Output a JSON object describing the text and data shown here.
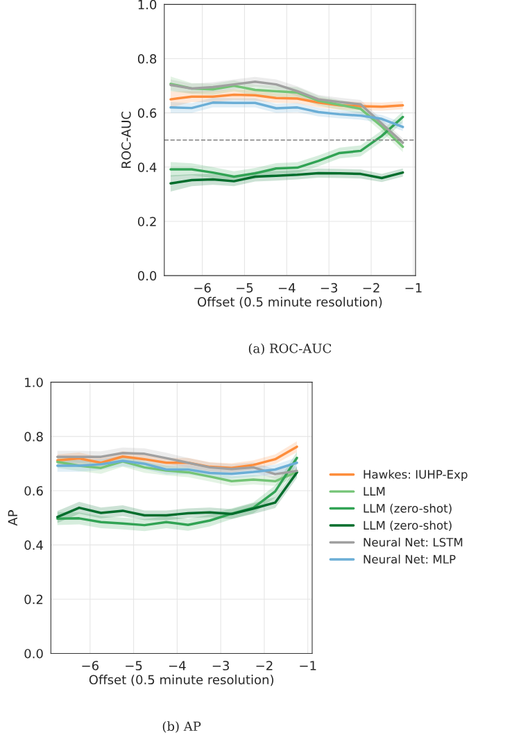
{
  "chart_data": [
    {
      "type": "line",
      "xlabel": "Offset (0.5 minute resolution)",
      "ylabel": "ROC-AUC",
      "annotations": [
        "(a) ROC-AUC"
      ],
      "x": [
        -6.75,
        -6.25,
        -5.75,
        -5.25,
        -4.75,
        -4.25,
        -3.75,
        -3.25,
        -2.75,
        -2.25,
        -1.75,
        -1.25
      ],
      "xlim": [
        -6.9,
        -0.95
      ],
      "xticks": [
        {
          "value": -6,
          "label": "−6"
        },
        {
          "value": -5,
          "label": "−5"
        },
        {
          "value": -4,
          "label": "−4"
        },
        {
          "value": -3,
          "label": "−3"
        },
        {
          "value": -2,
          "label": "−2"
        },
        {
          "value": -1,
          "label": "−1"
        }
      ],
      "ylim": [
        0,
        1
      ],
      "yticks": [
        {
          "value": 0,
          "label": "0.0"
        },
        {
          "value": 0.2,
          "label": "0.2"
        },
        {
          "value": 0.4,
          "label": "0.4"
        },
        {
          "value": 0.6,
          "label": "0.6"
        },
        {
          "value": 0.8,
          "label": "0.8"
        },
        {
          "value": 1,
          "label": "1.0"
        }
      ],
      "grid": true,
      "legend": false,
      "line_style": "solid",
      "ref_lines": [
        {
          "axis": "y",
          "value": 0.5,
          "color": "#808080",
          "line_style": "dashed"
        }
      ],
      "series": [
        {
          "color": "#fd8d3c",
          "values": [
            0.65,
            0.66,
            0.66,
            0.667,
            0.665,
            0.655,
            0.653,
            0.638,
            0.628,
            0.625,
            0.623,
            0.628
          ],
          "lower": [
            0.62,
            0.64,
            0.64,
            0.647,
            0.645,
            0.637,
            0.635,
            0.62,
            0.612,
            0.61,
            0.608,
            0.613
          ],
          "upper": [
            0.68,
            0.68,
            0.68,
            0.687,
            0.685,
            0.673,
            0.671,
            0.656,
            0.644,
            0.64,
            0.638,
            0.643
          ]
        },
        {
          "color": "#74c476",
          "values": [
            0.707,
            0.69,
            0.687,
            0.7,
            0.685,
            0.68,
            0.675,
            0.645,
            0.63,
            0.615,
            0.55,
            0.475
          ],
          "lower": [
            0.68,
            0.67,
            0.667,
            0.68,
            0.665,
            0.66,
            0.655,
            0.627,
            0.612,
            0.597,
            0.53,
            0.455
          ],
          "upper": [
            0.734,
            0.71,
            0.707,
            0.72,
            0.705,
            0.7,
            0.695,
            0.663,
            0.648,
            0.633,
            0.57,
            0.495
          ]
        },
        {
          "color": "#31a354",
          "values": [
            0.392,
            0.392,
            0.38,
            0.365,
            0.377,
            0.395,
            0.398,
            0.423,
            0.452,
            0.46,
            0.515,
            0.585
          ],
          "lower": [
            0.365,
            0.37,
            0.36,
            0.345,
            0.357,
            0.375,
            0.378,
            0.403,
            0.432,
            0.44,
            0.495,
            0.565
          ],
          "upper": [
            0.419,
            0.414,
            0.4,
            0.385,
            0.397,
            0.415,
            0.418,
            0.443,
            0.472,
            0.48,
            0.535,
            0.605
          ]
        },
        {
          "color": "#006d2c",
          "values": [
            0.34,
            0.352,
            0.355,
            0.348,
            0.365,
            0.368,
            0.372,
            0.378,
            0.377,
            0.375,
            0.36,
            0.38
          ],
          "lower": [
            0.31,
            0.33,
            0.335,
            0.33,
            0.347,
            0.35,
            0.355,
            0.361,
            0.36,
            0.358,
            0.345,
            0.365
          ],
          "upper": [
            0.37,
            0.374,
            0.375,
            0.366,
            0.383,
            0.386,
            0.389,
            0.395,
            0.394,
            0.392,
            0.375,
            0.395
          ]
        },
        {
          "color": "#a0a0a0",
          "values": [
            0.703,
            0.69,
            0.695,
            0.705,
            0.715,
            0.705,
            0.68,
            0.65,
            0.64,
            0.632,
            0.56,
            0.49
          ],
          "lower": [
            0.683,
            0.672,
            0.677,
            0.687,
            0.697,
            0.687,
            0.662,
            0.634,
            0.624,
            0.616,
            0.544,
            0.474
          ],
          "upper": [
            0.723,
            0.708,
            0.713,
            0.723,
            0.733,
            0.723,
            0.698,
            0.666,
            0.656,
            0.648,
            0.576,
            0.506
          ]
        },
        {
          "color": "#6baed6",
          "values": [
            0.62,
            0.618,
            0.638,
            0.637,
            0.637,
            0.617,
            0.62,
            0.603,
            0.595,
            0.59,
            0.578,
            0.548
          ],
          "lower": [
            0.6,
            0.6,
            0.62,
            0.62,
            0.62,
            0.6,
            0.603,
            0.587,
            0.58,
            0.575,
            0.563,
            0.533
          ],
          "upper": [
            0.64,
            0.636,
            0.656,
            0.654,
            0.654,
            0.634,
            0.637,
            0.619,
            0.61,
            0.605,
            0.593,
            0.563
          ]
        }
      ]
    },
    {
      "type": "line",
      "xlabel": "Offset (0.5 minute resolution)",
      "ylabel": "AP",
      "annotations": [
        "(b) AP"
      ],
      "x": [
        -6.75,
        -6.25,
        -5.75,
        -5.25,
        -4.75,
        -4.25,
        -3.75,
        -3.25,
        -2.75,
        -2.25,
        -1.75,
        -1.25
      ],
      "xlim": [
        -6.9,
        -0.9
      ],
      "xticks": [
        {
          "value": -6,
          "label": "−6"
        },
        {
          "value": -5,
          "label": "−5"
        },
        {
          "value": -4,
          "label": "−4"
        },
        {
          "value": -3,
          "label": "−3"
        },
        {
          "value": -2,
          "label": "−2"
        },
        {
          "value": -1,
          "label": "−1"
        }
      ],
      "ylim": [
        0,
        1
      ],
      "yticks": [
        {
          "value": 0,
          "label": "0.0"
        },
        {
          "value": 0.2,
          "label": "0.2"
        },
        {
          "value": 0.4,
          "label": "0.4"
        },
        {
          "value": 0.6,
          "label": "0.6"
        },
        {
          "value": 0.8,
          "label": "0.8"
        },
        {
          "value": 1,
          "label": "1.0"
        }
      ],
      "grid": true,
      "legend": "right",
      "line_style": "solid",
      "series": [
        {
          "name": "Hawkes: IUHP-Exp",
          "color": "#fd8d3c",
          "values": [
            0.712,
            0.719,
            0.703,
            0.726,
            0.716,
            0.703,
            0.703,
            0.688,
            0.684,
            0.695,
            0.716,
            0.762
          ],
          "lower": [
            0.69,
            0.697,
            0.683,
            0.706,
            0.696,
            0.685,
            0.685,
            0.671,
            0.667,
            0.678,
            0.698,
            0.742
          ],
          "upper": [
            0.734,
            0.741,
            0.723,
            0.746,
            0.736,
            0.721,
            0.721,
            0.705,
            0.701,
            0.712,
            0.734,
            0.782
          ]
        },
        {
          "name": "LLM",
          "color": "#74c476",
          "values": [
            0.706,
            0.692,
            0.684,
            0.708,
            0.686,
            0.674,
            0.668,
            0.652,
            0.635,
            0.641,
            0.635,
            0.669
          ],
          "lower": [
            0.684,
            0.672,
            0.662,
            0.688,
            0.666,
            0.656,
            0.65,
            0.634,
            0.617,
            0.623,
            0.617,
            0.651
          ],
          "upper": [
            0.728,
            0.712,
            0.706,
            0.728,
            0.706,
            0.692,
            0.686,
            0.67,
            0.653,
            0.659,
            0.653,
            0.687
          ]
        },
        {
          "name": "LLM (zero-shot)",
          "color": "#31a354",
          "values": [
            0.497,
            0.498,
            0.484,
            0.479,
            0.473,
            0.484,
            0.474,
            0.49,
            0.515,
            0.537,
            0.597,
            0.721
          ],
          "lower": [
            0.473,
            0.476,
            0.462,
            0.457,
            0.451,
            0.462,
            0.452,
            0.468,
            0.495,
            0.517,
            0.575,
            0.699
          ],
          "upper": [
            0.521,
            0.52,
            0.506,
            0.501,
            0.495,
            0.506,
            0.496,
            0.512,
            0.535,
            0.557,
            0.619,
            0.743
          ]
        },
        {
          "name": "LLM (zero-shot)",
          "color": "#006d2c",
          "values": [
            0.503,
            0.537,
            0.518,
            0.526,
            0.509,
            0.509,
            0.517,
            0.52,
            0.514,
            0.534,
            0.556,
            0.667
          ],
          "lower": [
            0.481,
            0.515,
            0.498,
            0.506,
            0.491,
            0.491,
            0.499,
            0.502,
            0.496,
            0.514,
            0.536,
            0.647
          ],
          "upper": [
            0.525,
            0.559,
            0.538,
            0.546,
            0.527,
            0.527,
            0.535,
            0.538,
            0.532,
            0.554,
            0.576,
            0.687
          ]
        },
        {
          "name": "Neural Net: LSTM",
          "color": "#a0a0a0",
          "values": [
            0.725,
            0.725,
            0.725,
            0.739,
            0.736,
            0.72,
            0.703,
            0.686,
            0.68,
            0.686,
            0.661,
            0.673
          ],
          "lower": [
            0.703,
            0.703,
            0.705,
            0.719,
            0.716,
            0.7,
            0.685,
            0.668,
            0.662,
            0.668,
            0.643,
            0.655
          ],
          "upper": [
            0.747,
            0.747,
            0.745,
            0.759,
            0.756,
            0.74,
            0.721,
            0.704,
            0.698,
            0.704,
            0.679,
            0.691
          ]
        },
        {
          "name": "Neural Net: MLP",
          "color": "#6baed6",
          "values": [
            0.692,
            0.692,
            0.697,
            0.71,
            0.699,
            0.678,
            0.678,
            0.665,
            0.662,
            0.669,
            0.678,
            0.703
          ],
          "lower": [
            0.67,
            0.67,
            0.677,
            0.69,
            0.679,
            0.66,
            0.66,
            0.647,
            0.644,
            0.651,
            0.66,
            0.683
          ],
          "upper": [
            0.714,
            0.714,
            0.717,
            0.73,
            0.719,
            0.696,
            0.696,
            0.683,
            0.68,
            0.687,
            0.696,
            0.723
          ]
        }
      ]
    }
  ]
}
